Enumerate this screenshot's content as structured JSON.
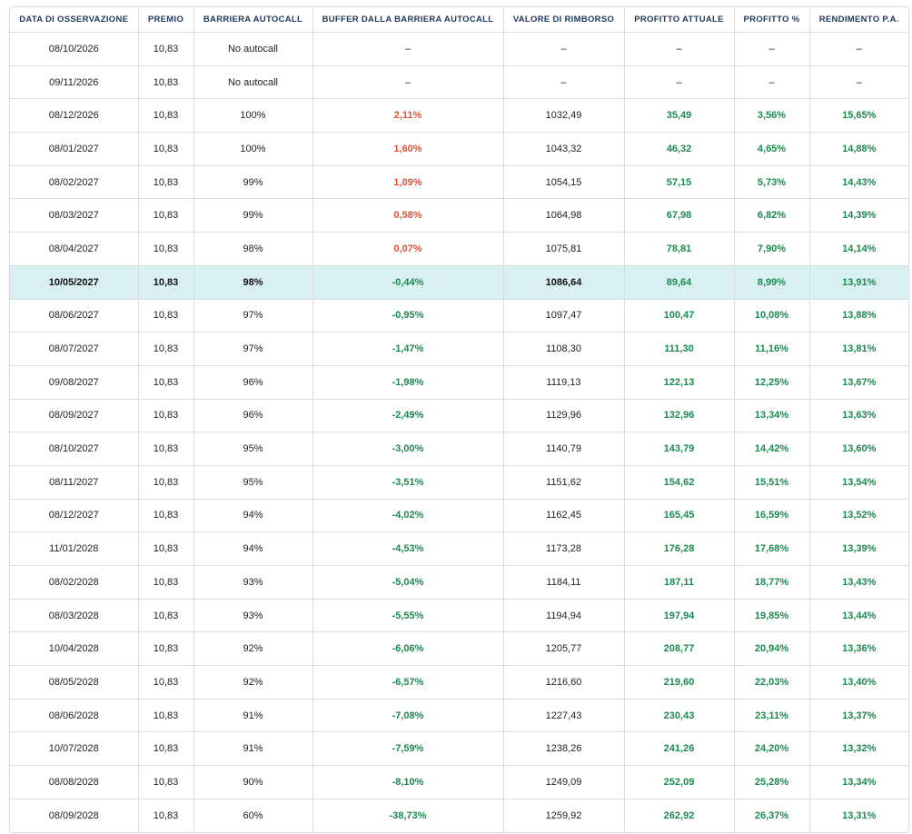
{
  "table": {
    "headers": [
      "DATA DI OSSERVAZIONE",
      "PREMIO",
      "BARRIERA AUTOCALL",
      "BUFFER DALLA BARRIERA AUTOCALL",
      "VALORE DI RIMBORSO",
      "PROFITTO ATTUALE",
      "PROFITTO %",
      "RENDIMENTO P.A."
    ],
    "highlight_row_index": 7,
    "colors": {
      "negative_buffer": "#e05239",
      "positive_value": "#1a8a4f",
      "highlight_background": "#d9f0f2",
      "header_text": "#1f3a5a"
    },
    "rows": [
      [
        "08/10/2026",
        "10,83",
        "No autocall",
        "–",
        "–",
        "–",
        "–",
        "–"
      ],
      [
        "09/11/2026",
        "10,83",
        "No autocall",
        "–",
        "–",
        "–",
        "–",
        "–"
      ],
      [
        "08/12/2026",
        "10,83",
        "100%",
        "2,11%",
        "1032,49",
        "35,49",
        "3,56%",
        "15,65%"
      ],
      [
        "08/01/2027",
        "10,83",
        "100%",
        "1,60%",
        "1043,32",
        "46,32",
        "4,65%",
        "14,88%"
      ],
      [
        "08/02/2027",
        "10,83",
        "99%",
        "1,09%",
        "1054,15",
        "57,15",
        "5,73%",
        "14,43%"
      ],
      [
        "08/03/2027",
        "10,83",
        "99%",
        "0,58%",
        "1064,98",
        "67,98",
        "6,82%",
        "14,39%"
      ],
      [
        "08/04/2027",
        "10,83",
        "98%",
        "0,07%",
        "1075,81",
        "78,81",
        "7,90%",
        "14,14%"
      ],
      [
        "10/05/2027",
        "10,83",
        "98%",
        "-0,44%",
        "1086,64",
        "89,64",
        "8,99%",
        "13,91%"
      ],
      [
        "08/06/2027",
        "10,83",
        "97%",
        "-0,95%",
        "1097,47",
        "100,47",
        "10,08%",
        "13,88%"
      ],
      [
        "08/07/2027",
        "10,83",
        "97%",
        "-1,47%",
        "1108,30",
        "111,30",
        "11,16%",
        "13,81%"
      ],
      [
        "09/08/2027",
        "10,83",
        "96%",
        "-1,98%",
        "1119,13",
        "122,13",
        "12,25%",
        "13,67%"
      ],
      [
        "08/09/2027",
        "10,83",
        "96%",
        "-2,49%",
        "1129,96",
        "132,96",
        "13,34%",
        "13,63%"
      ],
      [
        "08/10/2027",
        "10,83",
        "95%",
        "-3,00%",
        "1140,79",
        "143,79",
        "14,42%",
        "13,60%"
      ],
      [
        "08/11/2027",
        "10,83",
        "95%",
        "-3,51%",
        "1151,62",
        "154,62",
        "15,51%",
        "13,54%"
      ],
      [
        "08/12/2027",
        "10,83",
        "94%",
        "-4,02%",
        "1162,45",
        "165,45",
        "16,59%",
        "13,52%"
      ],
      [
        "11/01/2028",
        "10,83",
        "94%",
        "-4,53%",
        "1173,28",
        "176,28",
        "17,68%",
        "13,39%"
      ],
      [
        "08/02/2028",
        "10,83",
        "93%",
        "-5,04%",
        "1184,11",
        "187,11",
        "18,77%",
        "13,43%"
      ],
      [
        "08/03/2028",
        "10,83",
        "93%",
        "-5,55%",
        "1194,94",
        "197,94",
        "19,85%",
        "13,44%"
      ],
      [
        "10/04/2028",
        "10,83",
        "92%",
        "-6,06%",
        "1205,77",
        "208,77",
        "20,94%",
        "13,36%"
      ],
      [
        "08/05/2028",
        "10,83",
        "92%",
        "-6,57%",
        "1216,60",
        "219,60",
        "22,03%",
        "13,40%"
      ],
      [
        "08/06/2028",
        "10,83",
        "91%",
        "-7,08%",
        "1227,43",
        "230,43",
        "23,11%",
        "13,37%"
      ],
      [
        "10/07/2028",
        "10,83",
        "91%",
        "-7,59%",
        "1238,26",
        "241,26",
        "24,20%",
        "13,32%"
      ],
      [
        "08/08/2028",
        "10,83",
        "90%",
        "-8,10%",
        "1249,09",
        "252,09",
        "25,28%",
        "13,34%"
      ],
      [
        "08/09/2028",
        "10,83",
        "60%",
        "-38,73%",
        "1259,92",
        "262,92",
        "26,37%",
        "13,31%"
      ]
    ]
  }
}
